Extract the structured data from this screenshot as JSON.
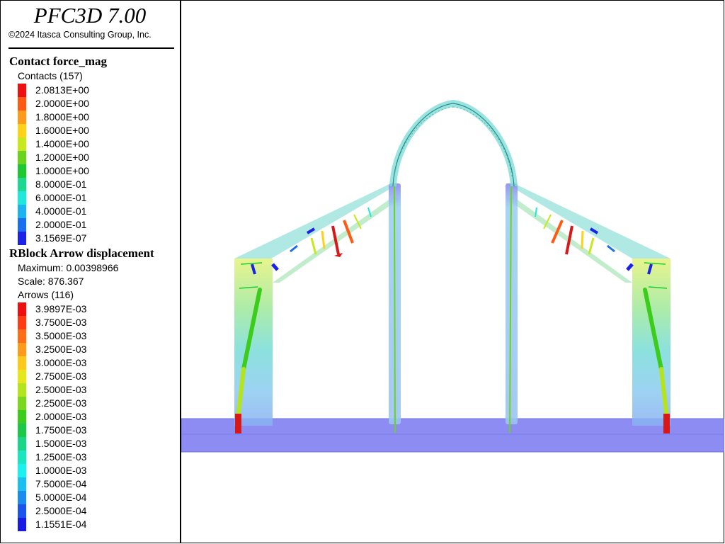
{
  "app": {
    "title": "PFC3D 7.00",
    "copyright": "©2024 Itasca Consulting Group, Inc."
  },
  "contact_force": {
    "title": "Contact force_mag",
    "subtitle": "Contacts (157)",
    "levels": [
      {
        "label": "2.0813E+00",
        "color": "#ee1010"
      },
      {
        "label": "2.0000E+00",
        "color": "#ff5a14"
      },
      {
        "label": "1.8000E+00",
        "color": "#ff9a1a"
      },
      {
        "label": "1.6000E+00",
        "color": "#ffd21a"
      },
      {
        "label": "1.4000E+00",
        "color": "#c6e81c"
      },
      {
        "label": "1.2000E+00",
        "color": "#6ad41c"
      },
      {
        "label": "1.0000E+00",
        "color": "#1ec830"
      },
      {
        "label": "8.0000E-01",
        "color": "#1cd890"
      },
      {
        "label": "6.0000E-01",
        "color": "#1ce8dc"
      },
      {
        "label": "4.0000E-01",
        "color": "#1cb4f0"
      },
      {
        "label": "2.0000E-01",
        "color": "#1a6ef0"
      },
      {
        "label": "3.1569E-07",
        "color": "#1a22e8"
      }
    ]
  },
  "displacement": {
    "title": "RBlock Arrow displacement",
    "maximum": "Maximum: 0.00398966",
    "scale": "Scale: 876.367",
    "subtitle": "Arrows (116)",
    "levels": [
      {
        "label": "3.9897E-03",
        "color": "#ee1010"
      },
      {
        "label": "3.7500E-03",
        "color": "#ff3c14"
      },
      {
        "label": "3.5000E-03",
        "color": "#ff6e16"
      },
      {
        "label": "3.2500E-03",
        "color": "#ff9a1a"
      },
      {
        "label": "3.0000E-03",
        "color": "#ffc81a"
      },
      {
        "label": "2.7500E-03",
        "color": "#e6e81c"
      },
      {
        "label": "2.5000E-03",
        "color": "#b4e41c"
      },
      {
        "label": "2.2500E-03",
        "color": "#7ad81c"
      },
      {
        "label": "2.0000E-03",
        "color": "#3ccc1c"
      },
      {
        "label": "1.7500E-03",
        "color": "#1cc848"
      },
      {
        "label": "1.5000E-03",
        "color": "#1cd688"
      },
      {
        "label": "1.2500E-03",
        "color": "#1ce6c0"
      },
      {
        "label": "1.0000E-03",
        "color": "#1cf0f0"
      },
      {
        "label": "7.5000E-04",
        "color": "#1cc0f0"
      },
      {
        "label": "5.0000E-04",
        "color": "#1a8cf0"
      },
      {
        "label": "2.5000E-04",
        "color": "#1a54ec"
      },
      {
        "label": "1.1551E-04",
        "color": "#1a1ae6"
      }
    ]
  },
  "model": {
    "base_color": "#8c8cf2",
    "wall_gradient": [
      "#e4f27a",
      "#9ee89a",
      "#78dcd8",
      "#8ccaf0",
      "#8ab0f2"
    ]
  }
}
